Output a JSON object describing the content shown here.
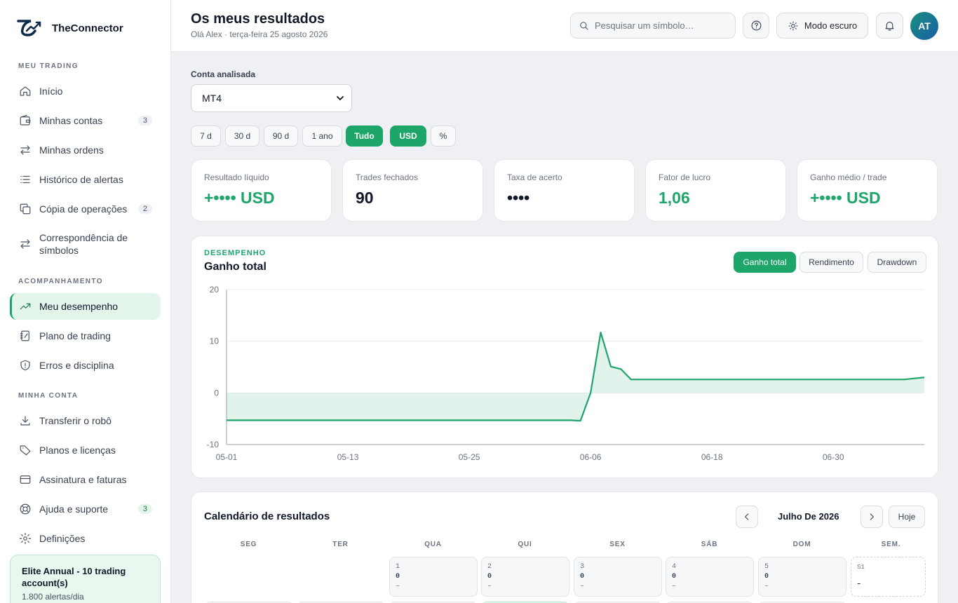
{
  "brand": {
    "name": "TheConnector"
  },
  "sidebar": {
    "sections": {
      "trading": "MEU TRADING",
      "tracking": "ACOMPANHAMENTO",
      "account": "MINHA CONTA"
    },
    "items": [
      {
        "label": "Início",
        "icon": "home-icon"
      },
      {
        "label": "Minhas contas",
        "icon": "wallet-icon",
        "badge": "3"
      },
      {
        "label": "Minhas ordens",
        "icon": "arrows-swap-icon"
      },
      {
        "label": "Histórico de alertas",
        "icon": "list-icon"
      },
      {
        "label": "Cópia de operações",
        "icon": "copy-icon",
        "badge": "2"
      },
      {
        "label": "Correspondência de símbolos",
        "icon": "arrows-swap-icon"
      },
      {
        "label": "Meu desempenho",
        "icon": "trending-up-icon",
        "active": true
      },
      {
        "label": "Plano de trading",
        "icon": "notebook-icon"
      },
      {
        "label": "Erros e disciplina",
        "icon": "shield-alert-icon"
      },
      {
        "label": "Transferir o robô",
        "icon": "download-icon"
      },
      {
        "label": "Planos e licenças",
        "icon": "tag-icon"
      },
      {
        "label": "Assinatura e faturas",
        "icon": "credit-card-icon"
      },
      {
        "label": "Ajuda e suporte",
        "icon": "lifebuoy-icon",
        "badge": "3"
      },
      {
        "label": "Definições",
        "icon": "gear-icon"
      }
    ],
    "plan": {
      "title": "Elite Annual - 10 trading account(s)",
      "subtitle": "1.800 alertas/dia"
    }
  },
  "header": {
    "title": "Os meus resultados",
    "subtitle": "Olá Alex · terça-feira 25 agosto 2026",
    "search_placeholder": "Pesquisar um símbolo…",
    "dark_mode_label": "Modo escuro",
    "avatar_initials": "AT"
  },
  "filters": {
    "account_label": "Conta analisada",
    "account_value": "MT4",
    "periods": [
      "7 d",
      "30 d",
      "90 d",
      "1 ano",
      "Tudo"
    ],
    "active_period": "Tudo",
    "units": [
      "USD",
      "%"
    ],
    "active_unit": "USD"
  },
  "stats": [
    {
      "label": "Resultado líquido",
      "value": "+•••• USD",
      "color": "green"
    },
    {
      "label": "Trades fechados",
      "value": "90",
      "color": "default"
    },
    {
      "label": "Taxa de acerto",
      "value": "••••",
      "color": "default"
    },
    {
      "label": "Fator de lucro",
      "value": "1,06",
      "color": "green"
    },
    {
      "label": "Ganho médio / trade",
      "value": "+•••• USD",
      "color": "green"
    }
  ],
  "performance": {
    "eyebrow": "DESEMPENHO",
    "title": "Ganho total",
    "tabs": [
      "Ganho total",
      "Rendimento",
      "Drawdown"
    ],
    "active_tab": "Ganho total"
  },
  "chart_data": {
    "type": "area",
    "title": "",
    "xlabel": "",
    "ylabel": "",
    "ylim": [
      -10,
      20
    ],
    "yticks": [
      20,
      10,
      0,
      -10
    ],
    "xticks": [
      "05-01",
      "05-13",
      "05-25",
      "06-06",
      "06-18",
      "06-30"
    ],
    "x_range": [
      "05-01",
      "07-09"
    ],
    "grid": true,
    "series": [
      {
        "color": "#1ea56a",
        "points": [
          {
            "x": "05-01",
            "y": -5.3
          },
          {
            "x": "05-13",
            "y": -5.3
          },
          {
            "x": "05-25",
            "y": -5.3
          },
          {
            "x": "06-04",
            "y": -5.3
          },
          {
            "x": "06-05",
            "y": -5.4
          },
          {
            "x": "06-06",
            "y": 0.0
          },
          {
            "x": "06-07",
            "y": 11.7
          },
          {
            "x": "06-08",
            "y": 5.1
          },
          {
            "x": "06-09",
            "y": 4.6
          },
          {
            "x": "06-10",
            "y": 2.6
          },
          {
            "x": "06-11",
            "y": 2.6
          },
          {
            "x": "06-18",
            "y": 2.6
          },
          {
            "x": "06-30",
            "y": 2.6
          },
          {
            "x": "07-07",
            "y": 2.6
          },
          {
            "x": "07-09",
            "y": 3.0
          }
        ]
      }
    ]
  },
  "calendar": {
    "title": "Calendário de resultados",
    "month": "Julho De 2026",
    "today_label": "Hoje",
    "weekdays": [
      "SEG",
      "TER",
      "QUA",
      "QUI",
      "SEX",
      "SÁB",
      "DOM",
      "SEM."
    ],
    "first_week": [
      {
        "day": "1",
        "value": "0",
        "extra": "–"
      },
      {
        "day": "2",
        "value": "0",
        "extra": "–"
      },
      {
        "day": "3",
        "value": "0",
        "extra": "–"
      },
      {
        "day": "4",
        "value": "0",
        "extra": "–"
      },
      {
        "day": "5",
        "value": "0",
        "extra": "–"
      }
    ],
    "week_summary": {
      "label": "S1",
      "value": "–"
    }
  },
  "colors": {
    "accent": "#1ea56a",
    "accent_light": "#e4f5ec"
  }
}
